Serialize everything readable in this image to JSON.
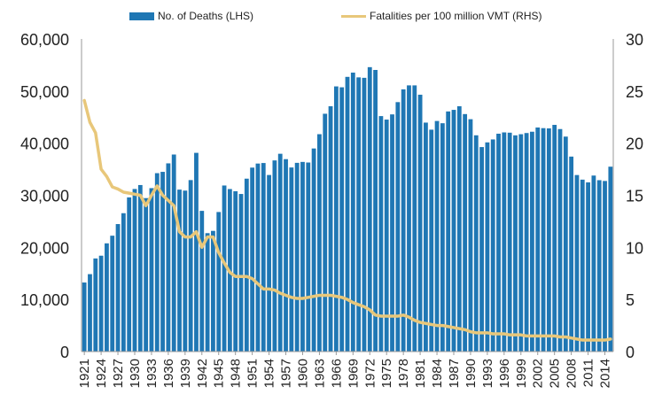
{
  "chart_data": {
    "type": "bar+line",
    "title": "",
    "legend": {
      "position": "top",
      "entries": [
        "No. of Deaths (LHS)",
        "Fatalities per 100 million VMT (RHS)"
      ]
    },
    "colors": {
      "bars": "#1f77b4",
      "line": "#e8c77a"
    },
    "x": [
      1921,
      1922,
      1923,
      1924,
      1925,
      1926,
      1927,
      1928,
      1929,
      1930,
      1931,
      1932,
      1933,
      1934,
      1935,
      1936,
      1937,
      1938,
      1939,
      1940,
      1941,
      1942,
      1943,
      1944,
      1945,
      1946,
      1947,
      1948,
      1949,
      1950,
      1951,
      1952,
      1953,
      1954,
      1955,
      1956,
      1957,
      1958,
      1959,
      1960,
      1961,
      1962,
      1963,
      1964,
      1965,
      1966,
      1967,
      1968,
      1969,
      1970,
      1971,
      1972,
      1973,
      1974,
      1975,
      1976,
      1977,
      1978,
      1979,
      1980,
      1981,
      1982,
      1983,
      1984,
      1985,
      1986,
      1987,
      1988,
      1989,
      1990,
      1991,
      1992,
      1993,
      1994,
      1995,
      1996,
      1997,
      1998,
      1999,
      2000,
      2001,
      2002,
      2003,
      2004,
      2005,
      2006,
      2007,
      2008,
      2009,
      2010,
      2011,
      2012,
      2013,
      2014,
      2015
    ],
    "x_tick_labels": [
      "1921",
      "1924",
      "1927",
      "1930",
      "1933",
      "1936",
      "1939",
      "1942",
      "1945",
      "1948",
      "1951",
      "1954",
      "1957",
      "1960",
      "1963",
      "1966",
      "1969",
      "1972",
      "1975",
      "1978",
      "1981",
      "1984",
      "1987",
      "1990",
      "1993",
      "1996",
      "1999",
      "2002",
      "2005",
      "2008",
      "2011",
      "2014"
    ],
    "series": [
      {
        "name": "No. of Deaths (LHS)",
        "axis": "left",
        "kind": "bar",
        "values": [
          13253,
          14859,
          17870,
          18400,
          20771,
          22239,
          24470,
          26557,
          29592,
          31204,
          31963,
          29451,
          31363,
          34240,
          34494,
          36126,
          37819,
          31083,
          30895,
          32914,
          38142,
          27007,
          22727,
          23165,
          26785,
          31874,
          31193,
          30775,
          30246,
          33186,
          35309,
          36088,
          36190,
          33890,
          36688,
          37965,
          36932,
          35331,
          36223,
          36399,
          36285,
          38980,
          41723,
          45645,
          47089,
          50894,
          50724,
          52725,
          53543,
          52627,
          52542,
          54589,
          54052,
          45196,
          44525,
          45523,
          47878,
          50331,
          51093,
          51091,
          49301,
          43945,
          42589,
          44257,
          43825,
          46087,
          46390,
          47087,
          45582,
          44599,
          41508,
          39250,
          40150,
          40716,
          41817,
          42065,
          42013,
          41501,
          41717,
          41945,
          42196,
          43005,
          42884,
          42836,
          43510,
          42708,
          41259,
          37423,
          33883,
          32999,
          32479,
          33782,
          32893,
          32744,
          35485
        ]
      },
      {
        "name": "Fatalities per 100 million VMT (RHS)",
        "axis": "right",
        "kind": "line",
        "values": [
          24.1,
          22.0,
          21.0,
          17.5,
          16.8,
          15.8,
          15.6,
          15.3,
          15.2,
          15.1,
          15.0,
          14.0,
          15.0,
          15.9,
          15.0,
          14.5,
          14.0,
          11.5,
          11.0,
          11.0,
          11.5,
          10.0,
          11.0,
          11.0,
          9.5,
          8.5,
          7.6,
          7.2,
          7.2,
          7.2,
          7.0,
          6.5,
          6.0,
          6.0,
          5.9,
          5.6,
          5.4,
          5.2,
          5.1,
          5.1,
          5.2,
          5.3,
          5.4,
          5.4,
          5.4,
          5.3,
          5.2,
          5.0,
          4.7,
          4.5,
          4.3,
          4.0,
          3.5,
          3.4,
          3.4,
          3.4,
          3.4,
          3.5,
          3.3,
          3.0,
          2.8,
          2.7,
          2.6,
          2.5,
          2.5,
          2.4,
          2.3,
          2.2,
          2.1,
          1.9,
          1.8,
          1.8,
          1.8,
          1.7,
          1.7,
          1.7,
          1.6,
          1.6,
          1.6,
          1.5,
          1.5,
          1.5,
          1.5,
          1.5,
          1.5,
          1.4,
          1.4,
          1.3,
          1.2,
          1.1,
          1.1,
          1.1,
          1.1,
          1.1,
          1.2
        ]
      }
    ],
    "y_left": {
      "min": 0,
      "max": 60000,
      "ticks": [
        0,
        10000,
        20000,
        30000,
        40000,
        50000,
        60000
      ],
      "tick_labels": [
        "0",
        "10,000",
        "20,000",
        "30,000",
        "40,000",
        "50,000",
        "60,000"
      ]
    },
    "y_right": {
      "min": 0,
      "max": 30,
      "ticks": [
        0,
        5,
        10,
        15,
        20,
        25,
        30
      ],
      "tick_labels": [
        "0",
        "5",
        "10",
        "15",
        "20",
        "25",
        "30"
      ]
    },
    "grid": false
  }
}
